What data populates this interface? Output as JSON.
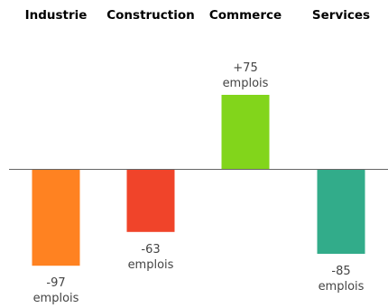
{
  "chart_data": {
    "type": "bar",
    "categories": [
      "Industrie",
      "Construction",
      "Commerce",
      "Services"
    ],
    "values": [
      -97,
      -63,
      75,
      -85
    ],
    "data_labels": [
      {
        "value": "-97",
        "unit": "emplois"
      },
      {
        "value": "-63",
        "unit": "emplois"
      },
      {
        "value": "+75",
        "unit": "emplois"
      },
      {
        "value": "-85",
        "unit": "emplois"
      }
    ],
    "colors": [
      "#FF8221",
      "#F0442A",
      "#82D51B",
      "#32AC8A"
    ],
    "axis_color": "#666666",
    "title": "",
    "xlabel": "",
    "ylabel": "",
    "ylim": [
      -110,
      90
    ],
    "grid": false,
    "legend": "none"
  }
}
